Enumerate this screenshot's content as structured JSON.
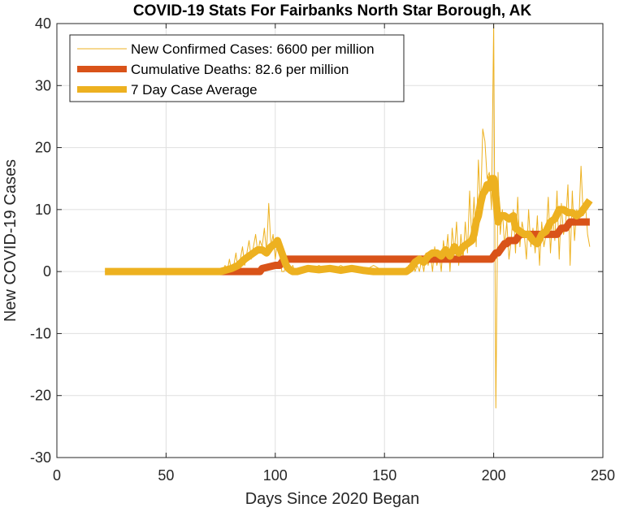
{
  "chart_data": {
    "type": "line",
    "title": "COVID-19 Stats For Fairbanks North Star Borough, AK",
    "xlabel": "Days Since 2020 Began",
    "ylabel": "New COVID-19 Cases",
    "xlim": [
      0,
      250
    ],
    "ylim": [
      -30,
      40
    ],
    "xticks": [
      0,
      50,
      100,
      150,
      200,
      250
    ],
    "yticks": [
      -30,
      -20,
      -10,
      0,
      10,
      20,
      30,
      40
    ],
    "grid": true,
    "legend_position": "top-left",
    "series": [
      {
        "name": "New Confirmed Cases: 6600 per million",
        "color": "#EDB120",
        "line": "thin",
        "x": [
          22,
          76,
          77,
          78,
          79,
          80,
          81,
          82,
          83,
          84,
          85,
          86,
          87,
          88,
          89,
          90,
          91,
          92,
          93,
          94,
          95,
          96,
          97,
          98,
          99,
          100,
          101,
          102,
          103,
          104,
          105,
          106,
          107,
          108,
          109,
          110,
          115,
          120,
          125,
          130,
          135,
          140,
          145,
          150,
          155,
          160,
          161,
          162,
          163,
          164,
          165,
          166,
          167,
          168,
          169,
          170,
          171,
          172,
          173,
          174,
          175,
          176,
          177,
          178,
          179,
          180,
          181,
          182,
          183,
          184,
          185,
          186,
          187,
          188,
          189,
          190,
          191,
          192,
          193,
          194,
          195,
          196,
          197,
          198,
          199,
          200,
          201,
          202,
          203,
          204,
          205,
          206,
          207,
          208,
          209,
          210,
          211,
          212,
          213,
          214,
          215,
          216,
          217,
          218,
          219,
          220,
          221,
          222,
          223,
          224,
          225,
          226,
          227,
          228,
          229,
          230,
          231,
          232,
          233,
          234,
          235,
          236,
          237,
          238,
          239,
          240,
          241,
          242,
          243,
          244
        ],
        "values": [
          0,
          0,
          1,
          0,
          2,
          0,
          1,
          3,
          0,
          2,
          4,
          1,
          3,
          5,
          2,
          4,
          6,
          3,
          5,
          4,
          7,
          3,
          11,
          4,
          6,
          2,
          5,
          3,
          0,
          0,
          1,
          0,
          0,
          1,
          0,
          0,
          0,
          1,
          0,
          1,
          0,
          0,
          1,
          0,
          0,
          0,
          1,
          0,
          2,
          0,
          1,
          0,
          2,
          0,
          3,
          1,
          3,
          0,
          4,
          1,
          3,
          0,
          5,
          2,
          6,
          0,
          7,
          3,
          8,
          1,
          6,
          2,
          8,
          3,
          13,
          5,
          12,
          4,
          18,
          10,
          23,
          21,
          15,
          16,
          10,
          40,
          -22,
          16,
          6,
          10,
          4,
          8,
          2,
          5,
          10,
          3,
          12,
          4,
          8,
          6,
          2,
          10,
          4,
          7,
          3,
          9,
          1,
          8,
          4,
          6,
          12,
          3,
          9,
          5,
          13,
          2,
          11,
          6,
          8,
          14,
          1,
          13,
          5,
          10,
          8,
          17,
          9,
          11,
          6,
          4
        ],
        "last_note": "end 4"
      },
      {
        "name": "Cumulative Deaths: 82.6 per million",
        "color": "#D95319",
        "line": "thick",
        "x": [
          75,
          93,
          94,
          100,
          101,
          102,
          103,
          104,
          199,
          200,
          201,
          202,
          203,
          204,
          205,
          206,
          207,
          208,
          209,
          210,
          211,
          212,
          228,
          229,
          230,
          231,
          232,
          233,
          234,
          235,
          236,
          237,
          238,
          244
        ],
        "values": [
          0,
          0,
          0.5,
          1,
          1,
          1,
          1.5,
          2,
          2,
          2.5,
          3,
          3,
          3.5,
          4,
          4.5,
          4.5,
          5,
          5,
          5,
          5,
          5.5,
          6,
          6,
          6,
          6.5,
          7,
          7,
          7,
          7.5,
          8,
          8,
          8,
          8,
          8
        ]
      },
      {
        "name": "7 Day Case Average",
        "color": "#EDB120",
        "line": "thick",
        "x": [
          22,
          75,
          80,
          83,
          86,
          88,
          90,
          92,
          94,
          96,
          98,
          100,
          101,
          102,
          103,
          104,
          105,
          106,
          107,
          108,
          110,
          115,
          120,
          125,
          130,
          135,
          140,
          145,
          150,
          155,
          160,
          162,
          164,
          166,
          168,
          170,
          172,
          174,
          176,
          178,
          180,
          182,
          184,
          186,
          188,
          190,
          191,
          192,
          193,
          194,
          195,
          196,
          197,
          198,
          199,
          200,
          201,
          202,
          203,
          205,
          207,
          209,
          210,
          212,
          214,
          216,
          218,
          220,
          222,
          224,
          226,
          228,
          230,
          232,
          234,
          236,
          238,
          240,
          242,
          244
        ],
        "values": [
          0,
          0,
          0.5,
          1,
          2,
          2.5,
          3,
          3.5,
          3.5,
          3,
          4,
          4.5,
          5,
          4,
          3,
          2,
          1,
          0.5,
          0.2,
          0,
          0,
          0.5,
          0.3,
          0.5,
          0.2,
          0.5,
          0.2,
          0,
          0,
          0,
          0,
          0.5,
          1.5,
          2,
          1.5,
          2.5,
          3,
          3,
          2.5,
          3.5,
          2.5,
          4,
          3,
          4,
          4.5,
          5,
          6,
          8,
          9,
          11,
          12.5,
          13,
          14,
          13.5,
          15,
          15,
          12,
          8,
          9,
          9,
          8.5,
          9,
          7,
          6.5,
          6,
          6,
          5,
          4.5,
          6,
          6.5,
          8,
          8.5,
          10,
          10,
          9.5,
          9.5,
          9,
          9.5,
          10.5,
          11.5
        ]
      }
    ]
  }
}
